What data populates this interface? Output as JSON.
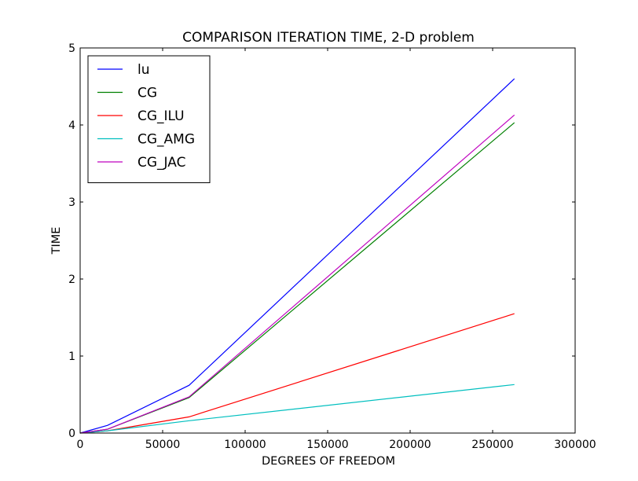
{
  "chart_data": {
    "type": "line",
    "title": "COMPARISON ITERATION TIME,  2-D problem",
    "xlabel": "DEGREES OF FREEDOM",
    "ylabel": "TIME",
    "xlim": [
      0,
      300000
    ],
    "ylim": [
      0,
      5
    ],
    "xticks": [
      0,
      50000,
      100000,
      150000,
      200000,
      250000,
      300000
    ],
    "xtick_labels": [
      "0",
      "50000",
      "100000",
      "150000",
      "200000",
      "250000",
      "300000"
    ],
    "yticks": [
      0,
      1,
      2,
      3,
      4,
      5
    ],
    "ytick_labels": [
      "0",
      "1",
      "2",
      "3",
      "4",
      "5"
    ],
    "grid": false,
    "legend_position": "top-left",
    "x": [
      0,
      16641,
      66049,
      263169
    ],
    "series": [
      {
        "name": "lu",
        "color": "#0000ff",
        "values": [
          0.0,
          0.1,
          0.62,
          4.6
        ]
      },
      {
        "name": "CG",
        "color": "#008000",
        "values": [
          0.0,
          0.05,
          0.46,
          4.03
        ]
      },
      {
        "name": "CG_ILU",
        "color": "#ff0000",
        "values": [
          0.0,
          0.03,
          0.21,
          1.55
        ]
      },
      {
        "name": "CG_AMG",
        "color": "#00bfbf",
        "values": [
          0.0,
          0.03,
          0.16,
          0.63
        ]
      },
      {
        "name": "CG_JAC",
        "color": "#bf00bf",
        "values": [
          0.0,
          0.05,
          0.47,
          4.13
        ]
      }
    ]
  }
}
